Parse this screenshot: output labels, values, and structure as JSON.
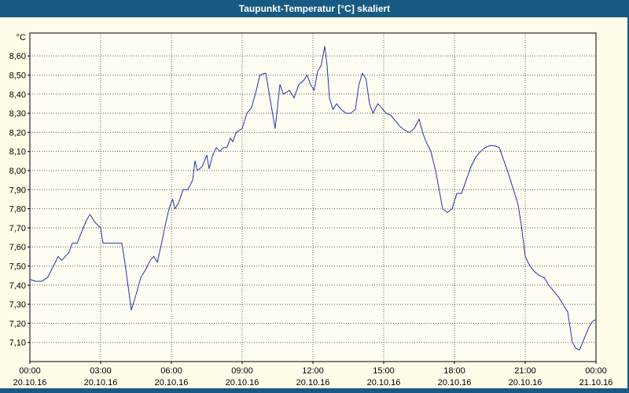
{
  "titlebar": {
    "text": "Taupunkt-Temperatur [°C] skaliert"
  },
  "colors": {
    "titlebar_blue": "#175a84",
    "page_background": "#fffcea",
    "plot_background": "#fffdf2",
    "line_color": "#2233aa",
    "grid_color": "#606060",
    "axis_color": "#000000",
    "text_color": "#000000"
  },
  "chart_data": {
    "type": "line",
    "title": "Taupunkt-Temperatur [°C] skaliert",
    "unit_label": "°C",
    "xlabel": "",
    "ylabel": "°C",
    "xlim": [
      0,
      24
    ],
    "ylim": [
      7.0,
      8.72
    ],
    "grid": "dotted",
    "legend": "none",
    "x_tick_hours": [
      0,
      3,
      6,
      9,
      12,
      15,
      18,
      21,
      24
    ],
    "x_tick_times": [
      "00:00",
      "03:00",
      "06:00",
      "09:00",
      "12:00",
      "15:00",
      "18:00",
      "21:00",
      "00:00"
    ],
    "x_tick_dates": [
      "20.10.16",
      "20.10.16",
      "20.10.16",
      "20.10.16",
      "20.10.16",
      "20.10.16",
      "20.10.16",
      "20.10.16",
      "21.10.16"
    ],
    "y_tick_values": [
      8.6,
      8.5,
      8.4,
      8.3,
      8.2,
      8.1,
      8.0,
      7.9,
      7.8,
      7.7,
      7.6,
      7.5,
      7.4,
      7.3,
      7.2,
      7.1
    ],
    "y_tick_labels": [
      "8,60",
      "8,50",
      "8,40",
      "8,30",
      "8,20",
      "8,10",
      "8,00",
      "7,90",
      "7,80",
      "7,70",
      "7,60",
      "7,50",
      "7,40",
      "7,30",
      "7,20",
      "7,10"
    ],
    "series": [
      {
        "name": "Taupunkt-Temperatur",
        "x": [
          0,
          0.25,
          0.5,
          0.75,
          1.0,
          1.2,
          1.35,
          1.5,
          1.65,
          1.8,
          2.0,
          2.2,
          2.4,
          2.55,
          2.75,
          3.0,
          3.1,
          3.3,
          3.6,
          3.9,
          4.05,
          4.3,
          4.5,
          4.7,
          4.9,
          5.1,
          5.25,
          5.4,
          5.55,
          5.75,
          5.9,
          6.05,
          6.15,
          6.3,
          6.5,
          6.7,
          6.9,
          7.0,
          7.1,
          7.3,
          7.5,
          7.6,
          7.75,
          7.9,
          8.05,
          8.2,
          8.35,
          8.5,
          8.6,
          8.75,
          9.0,
          9.2,
          9.4,
          9.6,
          9.75,
          10.0,
          10.15,
          10.4,
          10.6,
          10.75,
          11.0,
          11.2,
          11.4,
          11.6,
          11.75,
          11.9,
          12.05,
          12.2,
          12.35,
          12.5,
          12.6,
          12.7,
          12.85,
          13.0,
          13.2,
          13.4,
          13.6,
          13.8,
          13.95,
          14.1,
          14.25,
          14.4,
          14.55,
          14.75,
          14.9,
          15.1,
          15.3,
          15.5,
          15.7,
          15.9,
          16.1,
          16.3,
          16.5,
          16.65,
          16.8,
          17.0,
          17.2,
          17.35,
          17.5,
          17.7,
          17.9,
          18.1,
          18.3,
          18.5,
          18.7,
          18.9,
          19.1,
          19.3,
          19.5,
          19.7,
          19.9,
          20.1,
          20.3,
          20.5,
          20.7,
          20.85,
          21.0,
          21.2,
          21.4,
          21.6,
          21.8,
          22.0,
          22.2,
          22.4,
          22.6,
          22.8,
          23.0,
          23.15,
          23.3,
          23.5,
          23.7,
          23.85,
          24.0
        ],
        "values": [
          7.43,
          7.42,
          7.42,
          7.44,
          7.5,
          7.55,
          7.53,
          7.55,
          7.57,
          7.62,
          7.62,
          7.68,
          7.74,
          7.77,
          7.73,
          7.7,
          7.62,
          7.62,
          7.62,
          7.62,
          7.5,
          7.27,
          7.35,
          7.44,
          7.48,
          7.53,
          7.55,
          7.52,
          7.6,
          7.72,
          7.8,
          7.85,
          7.8,
          7.83,
          7.9,
          7.9,
          7.95,
          8.05,
          8.0,
          8.02,
          8.08,
          8.01,
          8.08,
          8.12,
          8.1,
          8.12,
          8.12,
          8.17,
          8.15,
          8.2,
          8.22,
          8.3,
          8.33,
          8.42,
          8.5,
          8.51,
          8.4,
          8.22,
          8.45,
          8.4,
          8.42,
          8.38,
          8.45,
          8.47,
          8.5,
          8.45,
          8.42,
          8.52,
          8.55,
          8.65,
          8.55,
          8.38,
          8.32,
          8.35,
          8.32,
          8.3,
          8.3,
          8.32,
          8.45,
          8.51,
          8.48,
          8.35,
          8.3,
          8.35,
          8.33,
          8.3,
          8.29,
          8.26,
          8.23,
          8.21,
          8.2,
          8.22,
          8.27,
          8.2,
          8.15,
          8.1,
          8.0,
          7.9,
          7.8,
          7.78,
          7.8,
          7.88,
          7.88,
          7.95,
          8.02,
          8.07,
          8.1,
          8.12,
          8.13,
          8.13,
          8.12,
          8.05,
          7.98,
          7.9,
          7.82,
          7.7,
          7.55,
          7.5,
          7.47,
          7.45,
          7.44,
          7.4,
          7.37,
          7.34,
          7.3,
          7.26,
          7.1,
          7.07,
          7.06,
          7.12,
          7.18,
          7.21,
          7.22
        ]
      }
    ]
  }
}
